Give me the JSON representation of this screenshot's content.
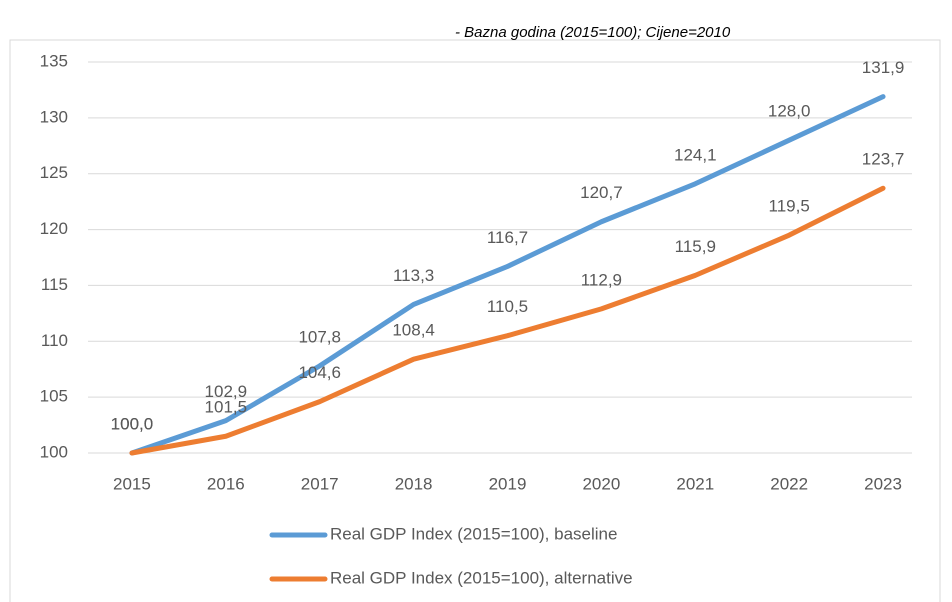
{
  "chart_data": {
    "type": "line",
    "subtitle": "- Bazna godina (2015=100); Cijene=2010",
    "categories": [
      "2015",
      "2016",
      "2017",
      "2018",
      "2019",
      "2020",
      "2021",
      "2022",
      "2023"
    ],
    "series": [
      {
        "name": "Real GDP Index (2015=100), baseline",
        "color": "#5b9bd5",
        "values": [
          100.0,
          102.9,
          107.8,
          113.3,
          116.7,
          120.7,
          124.1,
          128.0,
          131.9
        ],
        "value_labels": [
          "100,0",
          "102,9",
          "107,8",
          "113,3",
          "116,7",
          "120,7",
          "124,1",
          "128,0",
          "131,9"
        ]
      },
      {
        "name": "Real GDP Index (2015=100), alternative",
        "color": "#ed7d31",
        "values": [
          100.0,
          101.5,
          104.6,
          108.4,
          110.5,
          112.9,
          115.9,
          119.5,
          123.7
        ],
        "value_labels": [
          "100,0",
          "101,5",
          "104,6",
          "108,4",
          "110,5",
          "112,9",
          "115,9",
          "119,5",
          "123,7"
        ]
      }
    ],
    "ylim": [
      100,
      135
    ],
    "yticks": [
      100,
      105,
      110,
      115,
      120,
      125,
      130,
      135
    ],
    "grid": true,
    "legend": "bottom"
  }
}
